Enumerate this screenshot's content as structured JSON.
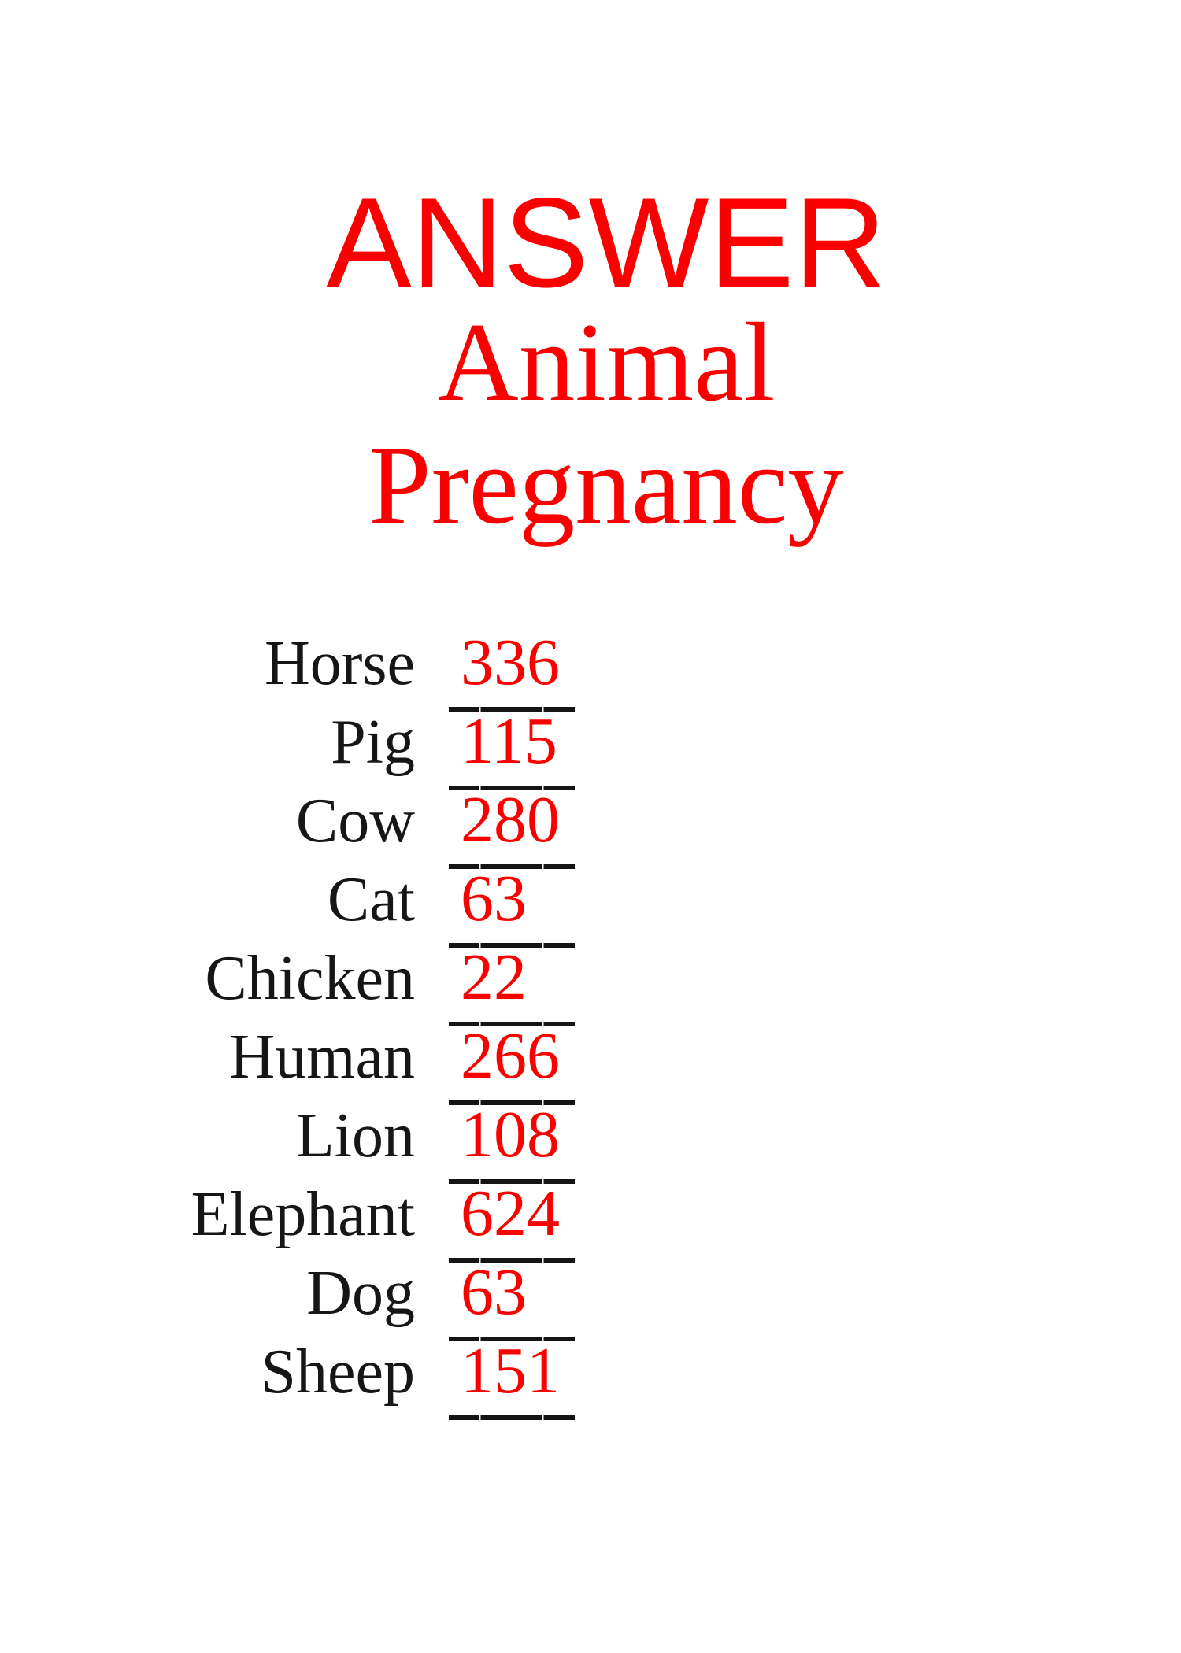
{
  "colors": {
    "red": "#fb0000",
    "ink": "#161616"
  },
  "title": {
    "answer": "ANSWER",
    "subject_line1": "Animal",
    "subject_line2": "Pregnancy"
  },
  "list": {
    "items": [
      {
        "label": "Horse",
        "value": "336"
      },
      {
        "label": "Pig",
        "value": "115"
      },
      {
        "label": "Cow",
        "value": "280"
      },
      {
        "label": "Cat",
        "value": "63"
      },
      {
        "label": "Chicken",
        "value": "22"
      },
      {
        "label": "Human",
        "value": "266"
      },
      {
        "label": "Lion",
        "value": "108"
      },
      {
        "label": "Elephant",
        "value": "624"
      },
      {
        "label": "Dog",
        "value": "63"
      },
      {
        "label": "Sheep",
        "value": "151"
      }
    ]
  }
}
